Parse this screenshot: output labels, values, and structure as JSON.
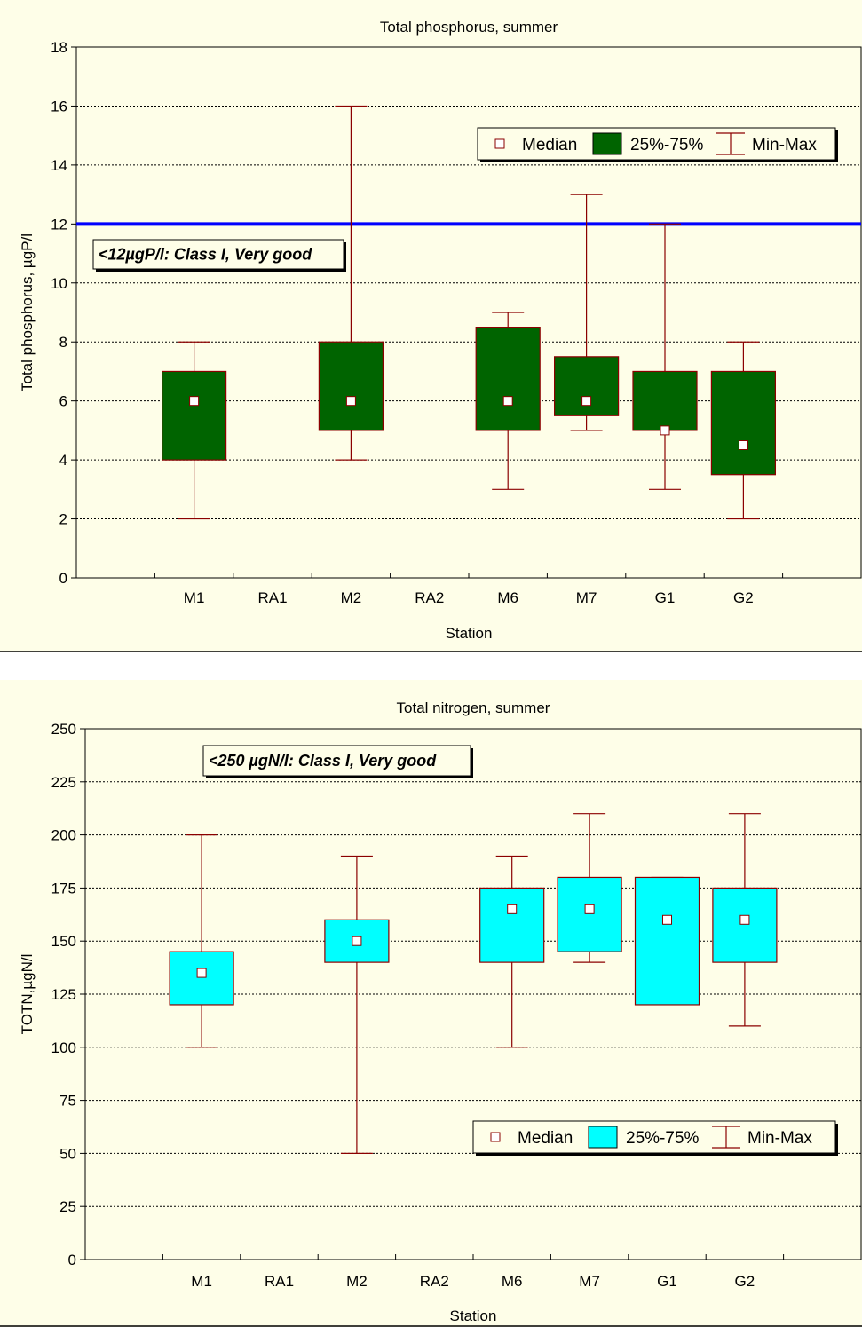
{
  "colors": {
    "background": "#fefee8",
    "whisker": "#8b0000",
    "median_fill": "#ffffff",
    "grid": "#000000",
    "threshold_line": "#0000ff"
  },
  "chart_data": [
    {
      "type": "box",
      "title": "Total phosphorus, summer",
      "xlabel": "Station",
      "ylabel": "Total phosphorus, µgP/l",
      "ylim": [
        0,
        18
      ],
      "yticks": [
        0,
        2,
        4,
        6,
        8,
        10,
        12,
        14,
        16,
        18
      ],
      "categories": [
        "M1",
        "RA1",
        "M2",
        "RA2",
        "M6",
        "M7",
        "G1",
        "G2"
      ],
      "box_color": "#006400",
      "grid": "horizontal dotted",
      "legend": {
        "position": "top-right",
        "items": [
          "Median",
          "25%-75%",
          "Min-Max"
        ]
      },
      "threshold": {
        "value": 12,
        "label": "<12µgP/l: Class I, Very good"
      },
      "boxes": [
        {
          "station": "M1",
          "min": 2,
          "q1": 4,
          "median": 6,
          "q3": 7,
          "max": 8
        },
        {
          "station": "M2",
          "min": 4,
          "q1": 5,
          "median": 6,
          "q3": 8,
          "max": 16
        },
        {
          "station": "M6",
          "min": 3,
          "q1": 5,
          "median": 6,
          "q3": 8.5,
          "max": 9
        },
        {
          "station": "M7",
          "min": 5,
          "q1": 5.5,
          "median": 6,
          "q3": 7.5,
          "max": 13
        },
        {
          "station": "G1",
          "min": 3,
          "q1": 5,
          "median": 5,
          "q3": 7,
          "max": 12
        },
        {
          "station": "G2",
          "min": 2,
          "q1": 3.5,
          "median": 4.5,
          "q3": 7,
          "max": 8
        }
      ]
    },
    {
      "type": "box",
      "title": "Total nitrogen, summer",
      "xlabel": "Station",
      "ylabel": "TOTN,µgN/l",
      "ylim": [
        0,
        250
      ],
      "yticks": [
        0,
        25,
        50,
        75,
        100,
        125,
        150,
        175,
        200,
        225,
        250
      ],
      "categories": [
        "M1",
        "RA1",
        "M2",
        "RA2",
        "M6",
        "M7",
        "G1",
        "G2"
      ],
      "box_color": "#00ffff",
      "grid": "horizontal dotted",
      "legend": {
        "position": "bottom-right",
        "items": [
          "Median",
          "25%-75%",
          "Min-Max"
        ]
      },
      "annotation": {
        "label": "<250 µgN/l: Class I, Very good"
      },
      "boxes": [
        {
          "station": "M1",
          "min": 100,
          "q1": 120,
          "median": 135,
          "q3": 145,
          "max": 200
        },
        {
          "station": "M2",
          "min": 50,
          "q1": 140,
          "median": 150,
          "q3": 160,
          "max": 190
        },
        {
          "station": "M6",
          "min": 100,
          "q1": 140,
          "median": 165,
          "q3": 175,
          "max": 190
        },
        {
          "station": "M7",
          "min": 140,
          "q1": 145,
          "median": 165,
          "q3": 180,
          "max": 210
        },
        {
          "station": "G1",
          "min": 120,
          "q1": 120,
          "median": 160,
          "q3": 180,
          "max": 180
        },
        {
          "station": "G2",
          "min": 110,
          "q1": 140,
          "median": 160,
          "q3": 175,
          "max": 210
        }
      ]
    }
  ]
}
